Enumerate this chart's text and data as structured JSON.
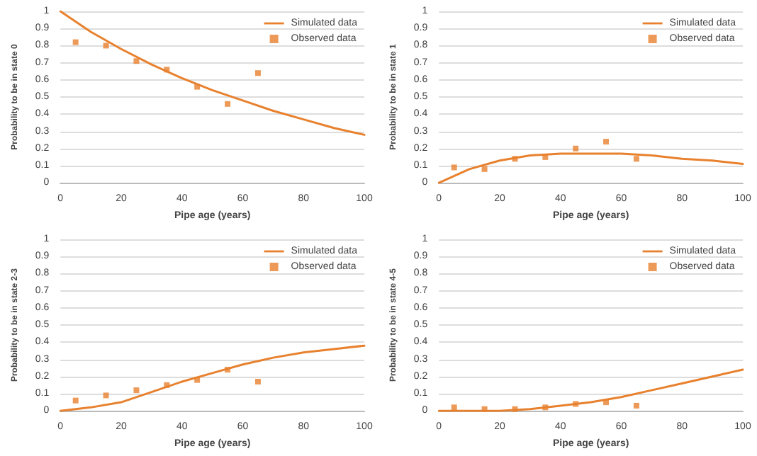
{
  "chart_data": [
    {
      "type": "line",
      "ylabel": "Probability to be in state 0",
      "xlabel": "Pipe age (years)",
      "xlim": [
        0,
        100
      ],
      "xticks": [
        0,
        20,
        40,
        60,
        80,
        100
      ],
      "ylim": [
        0,
        1
      ],
      "yticks": [
        0,
        0.1,
        0.2,
        0.3,
        0.4,
        0.5,
        0.6,
        0.7,
        0.8,
        0.9,
        1
      ],
      "grid": "y",
      "legend": "top right",
      "series": [
        {
          "name": "Simulated data",
          "type": "line",
          "color": "#e8812e",
          "marker": "none",
          "x": [
            0,
            10,
            20,
            30,
            40,
            50,
            60,
            70,
            80,
            90,
            100
          ],
          "values": [
            1,
            0.88,
            0.78,
            0.69,
            0.61,
            0.54,
            0.48,
            0.42,
            0.37,
            0.32,
            0.28
          ]
        },
        {
          "name": "Observed data",
          "type": "scatter",
          "color": "#e8812e",
          "marker": "square",
          "x": [
            5,
            15,
            25,
            35,
            45,
            55,
            65
          ],
          "values": [
            0.82,
            0.8,
            0.71,
            0.66,
            0.56,
            0.46,
            0.64
          ]
        }
      ]
    },
    {
      "type": "line",
      "ylabel": "Probability to be in state 1",
      "xlabel": "Pipe age (years)",
      "xlim": [
        0,
        100
      ],
      "xticks": [
        0,
        20,
        40,
        60,
        80,
        100
      ],
      "ylim": [
        0,
        1
      ],
      "yticks": [
        0,
        0.1,
        0.2,
        0.3,
        0.4,
        0.5,
        0.6,
        0.7,
        0.8,
        0.9,
        1
      ],
      "grid": "y",
      "legend": "top right",
      "series": [
        {
          "name": "Simulated data",
          "type": "line",
          "color": "#e8812e",
          "marker": "none",
          "x": [
            0,
            10,
            20,
            30,
            40,
            50,
            60,
            70,
            80,
            90,
            100
          ],
          "values": [
            0,
            0.08,
            0.13,
            0.16,
            0.17,
            0.17,
            0.17,
            0.16,
            0.14,
            0.13,
            0.11
          ]
        },
        {
          "name": "Observed data",
          "type": "scatter",
          "color": "#e8812e",
          "marker": "square",
          "x": [
            5,
            15,
            25,
            35,
            45,
            55,
            65
          ],
          "values": [
            0.09,
            0.08,
            0.14,
            0.15,
            0.2,
            0.24,
            0.14
          ]
        }
      ]
    },
    {
      "type": "line",
      "ylabel": "Probability to be in state 2-3",
      "xlabel": "Pipe age (years)",
      "xlim": [
        0,
        100
      ],
      "xticks": [
        0,
        20,
        40,
        60,
        80,
        100
      ],
      "ylim": [
        0,
        1
      ],
      "yticks": [
        0,
        0.1,
        0.2,
        0.3,
        0.4,
        0.5,
        0.6,
        0.7,
        0.8,
        0.9,
        1
      ],
      "grid": "y",
      "legend": "top right",
      "series": [
        {
          "name": "Simulated data",
          "type": "line",
          "color": "#e8812e",
          "marker": "none",
          "x": [
            0,
            10,
            20,
            30,
            40,
            50,
            60,
            70,
            80,
            90,
            100
          ],
          "values": [
            0,
            0.02,
            0.05,
            0.11,
            0.17,
            0.22,
            0.27,
            0.31,
            0.34,
            0.36,
            0.38
          ]
        },
        {
          "name": "Observed data",
          "type": "scatter",
          "color": "#e8812e",
          "marker": "square",
          "x": [
            5,
            15,
            25,
            35,
            45,
            55,
            65
          ],
          "values": [
            0.06,
            0.09,
            0.12,
            0.15,
            0.18,
            0.24,
            0.17
          ]
        }
      ]
    },
    {
      "type": "line",
      "ylabel": "Probability to be in state 4-5",
      "xlabel": "Pipe age (years)",
      "xlim": [
        0,
        100
      ],
      "xticks": [
        0,
        20,
        40,
        60,
        80,
        100
      ],
      "ylim": [
        0,
        1
      ],
      "yticks": [
        0,
        0.1,
        0.2,
        0.3,
        0.4,
        0.5,
        0.6,
        0.7,
        0.8,
        0.9,
        1
      ],
      "grid": "y",
      "legend": "top right",
      "series": [
        {
          "name": "Simulated data",
          "type": "line",
          "color": "#e8812e",
          "marker": "none",
          "x": [
            0,
            10,
            20,
            30,
            40,
            50,
            60,
            70,
            80,
            90,
            100
          ],
          "values": [
            0,
            0,
            0,
            0.01,
            0.03,
            0.05,
            0.08,
            0.12,
            0.16,
            0.2,
            0.24
          ]
        },
        {
          "name": "Observed data",
          "type": "scatter",
          "color": "#e8812e",
          "marker": "square",
          "x": [
            5,
            15,
            25,
            35,
            45,
            55,
            65
          ],
          "values": [
            0.02,
            0.01,
            0.01,
            0.02,
            0.04,
            0.05,
            0.03
          ]
        }
      ]
    }
  ]
}
